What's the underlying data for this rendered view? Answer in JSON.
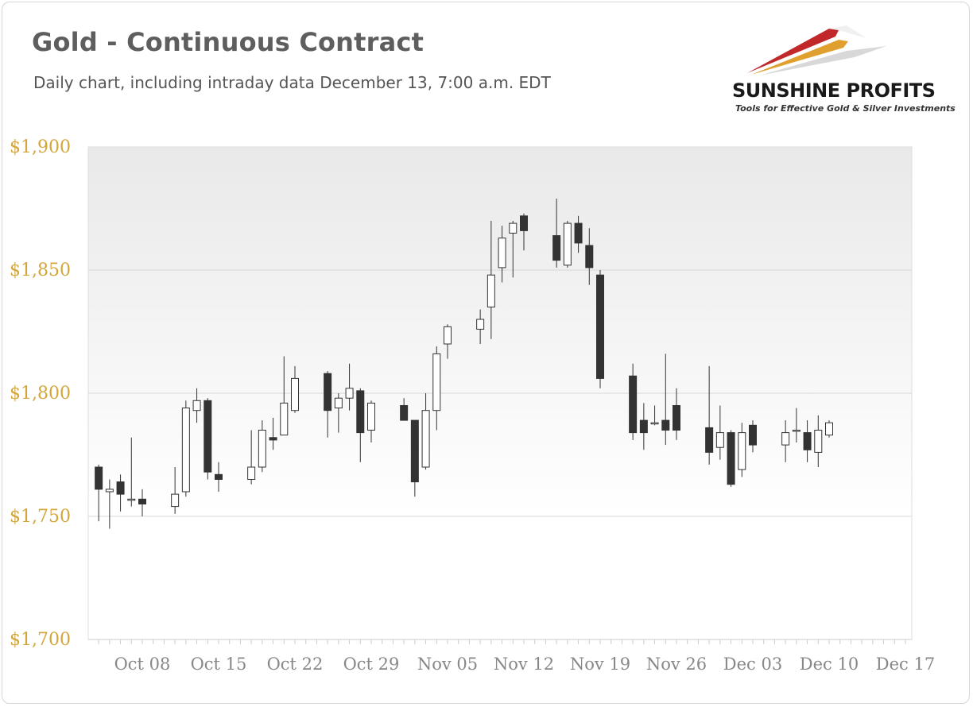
{
  "header": {
    "title": "Gold - Continuous Contract",
    "subtitle": "Daily chart, including intraday data December 13, 7:00 a.m. EDT"
  },
  "logo": {
    "name": "SUNSHINE PROFITS",
    "tagline": "Tools for Effective Gold & Silver Investments"
  },
  "colors": {
    "bullish_body": "#ffffff",
    "bearish_body": "#333333",
    "candle_outline": "#333333",
    "y_tick_label": "#d4a63a",
    "x_tick_label": "#888888",
    "gridline": "#d8d8d8"
  },
  "chart_data": {
    "type": "candlestick",
    "title": "Gold - Continuous Contract",
    "ylim": [
      1700,
      1900
    ],
    "y_ticks": [
      1700,
      1750,
      1800,
      1850,
      1900
    ],
    "y_tick_labels": [
      "$1,700",
      "$1,750",
      "$1,800",
      "$1,850",
      "$1,900"
    ],
    "x_ticks": [
      "Oct 08",
      "Oct 15",
      "Oct 22",
      "Oct 29",
      "Nov 05",
      "Nov 12",
      "Nov 19",
      "Nov 26",
      "Dec 03",
      "Dec 10",
      "Dec 17"
    ],
    "grid": true,
    "legend": "none",
    "candles": [
      {
        "date": "Oct 04",
        "open": 1770,
        "high": 1771,
        "low": 1748,
        "close": 1761
      },
      {
        "date": "Oct 05",
        "open": 1760,
        "high": 1765,
        "low": 1745,
        "close": 1761
      },
      {
        "date": "Oct 06",
        "open": 1764,
        "high": 1767,
        "low": 1752,
        "close": 1759
      },
      {
        "date": "Oct 07",
        "open": 1757,
        "high": 1782,
        "low": 1754,
        "close": 1757
      },
      {
        "date": "Oct 08",
        "open": 1757,
        "high": 1761,
        "low": 1750,
        "close": 1755
      },
      {
        "date": "Oct 11",
        "open": 1754,
        "high": 1770,
        "low": 1751,
        "close": 1759
      },
      {
        "date": "Oct 12",
        "open": 1760,
        "high": 1797,
        "low": 1758,
        "close": 1794
      },
      {
        "date": "Oct 13",
        "open": 1793,
        "high": 1802,
        "low": 1788,
        "close": 1797
      },
      {
        "date": "Oct 14",
        "open": 1797,
        "high": 1798,
        "low": 1765,
        "close": 1768
      },
      {
        "date": "Oct 15",
        "open": 1767,
        "high": 1772,
        "low": 1760,
        "close": 1765
      },
      {
        "date": "Oct 18",
        "open": 1765,
        "high": 1785,
        "low": 1763,
        "close": 1770
      },
      {
        "date": "Oct 19",
        "open": 1770,
        "high": 1789,
        "low": 1768,
        "close": 1785
      },
      {
        "date": "Oct 20",
        "open": 1782,
        "high": 1790,
        "low": 1777,
        "close": 1781
      },
      {
        "date": "Oct 21",
        "open": 1783,
        "high": 1815,
        "low": 1783,
        "close": 1796
      },
      {
        "date": "Oct 22",
        "open": 1793,
        "high": 1811,
        "low": 1792,
        "close": 1806
      },
      {
        "date": "Oct 25",
        "open": 1808,
        "high": 1809,
        "low": 1782,
        "close": 1793
      },
      {
        "date": "Oct 26",
        "open": 1794,
        "high": 1800,
        "low": 1784,
        "close": 1798
      },
      {
        "date": "Oct 27",
        "open": 1798,
        "high": 1812,
        "low": 1793,
        "close": 1802
      },
      {
        "date": "Oct 28",
        "open": 1801,
        "high": 1802,
        "low": 1772,
        "close": 1784
      },
      {
        "date": "Oct 29",
        "open": 1785,
        "high": 1797,
        "low": 1780,
        "close": 1796
      },
      {
        "date": "Nov 01",
        "open": 1795,
        "high": 1798,
        "low": 1789,
        "close": 1789
      },
      {
        "date": "Nov 02",
        "open": 1789,
        "high": 1789,
        "low": 1758,
        "close": 1764
      },
      {
        "date": "Nov 03",
        "open": 1770,
        "high": 1800,
        "low": 1769,
        "close": 1793
      },
      {
        "date": "Nov 04",
        "open": 1793,
        "high": 1819,
        "low": 1785,
        "close": 1816
      },
      {
        "date": "Nov 05",
        "open": 1820,
        "high": 1828,
        "low": 1814,
        "close": 1827
      },
      {
        "date": "Nov 08",
        "open": 1826,
        "high": 1834,
        "low": 1820,
        "close": 1830
      },
      {
        "date": "Nov 09",
        "open": 1835,
        "high": 1870,
        "low": 1822,
        "close": 1848
      },
      {
        "date": "Nov 10",
        "open": 1851,
        "high": 1868,
        "low": 1845,
        "close": 1863
      },
      {
        "date": "Nov 11",
        "open": 1865,
        "high": 1870,
        "low": 1847,
        "close": 1869
      },
      {
        "date": "Nov 12",
        "open": 1872,
        "high": 1873,
        "low": 1858,
        "close": 1866
      },
      {
        "date": "Nov 15",
        "open": 1864,
        "high": 1879,
        "low": 1851,
        "close": 1854
      },
      {
        "date": "Nov 16",
        "open": 1852,
        "high": 1870,
        "low": 1851,
        "close": 1869
      },
      {
        "date": "Nov 17",
        "open": 1869,
        "high": 1872,
        "low": 1857,
        "close": 1861
      },
      {
        "date": "Nov 18",
        "open": 1860,
        "high": 1867,
        "low": 1844,
        "close": 1851
      },
      {
        "date": "Nov 19",
        "open": 1848,
        "high": 1850,
        "low": 1802,
        "close": 1806
      },
      {
        "date": "Nov 22",
        "open": 1807,
        "high": 1812,
        "low": 1781,
        "close": 1784
      },
      {
        "date": "Nov 23",
        "open": 1789,
        "high": 1796,
        "low": 1777,
        "close": 1784
      },
      {
        "date": "Nov 24",
        "open": 1788,
        "high": 1795,
        "low": 1787,
        "close": 1788
      },
      {
        "date": "Nov 25",
        "open": 1789,
        "high": 1816,
        "low": 1779,
        "close": 1785
      },
      {
        "date": "Nov 26",
        "open": 1795,
        "high": 1802,
        "low": 1781,
        "close": 1785
      },
      {
        "date": "Nov 29",
        "open": 1786,
        "high": 1811,
        "low": 1771,
        "close": 1776
      },
      {
        "date": "Nov 30",
        "open": 1778,
        "high": 1795,
        "low": 1773,
        "close": 1784
      },
      {
        "date": "Dec 01",
        "open": 1784,
        "high": 1785,
        "low": 1762,
        "close": 1763
      },
      {
        "date": "Dec 02",
        "open": 1769,
        "high": 1788,
        "low": 1766,
        "close": 1784
      },
      {
        "date": "Dec 03",
        "open": 1787,
        "high": 1789,
        "low": 1776,
        "close": 1779
      },
      {
        "date": "Dec 06",
        "open": 1779,
        "high": 1789,
        "low": 1772,
        "close": 1784
      },
      {
        "date": "Dec 07",
        "open": 1785,
        "high": 1794,
        "low": 1780,
        "close": 1785
      },
      {
        "date": "Dec 08",
        "open": 1784,
        "high": 1789,
        "low": 1772,
        "close": 1777
      },
      {
        "date": "Dec 09",
        "open": 1776,
        "high": 1791,
        "low": 1770,
        "close": 1785
      },
      {
        "date": "Dec 10",
        "open": 1783,
        "high": 1789,
        "low": 1782,
        "close": 1788
      }
    ]
  }
}
